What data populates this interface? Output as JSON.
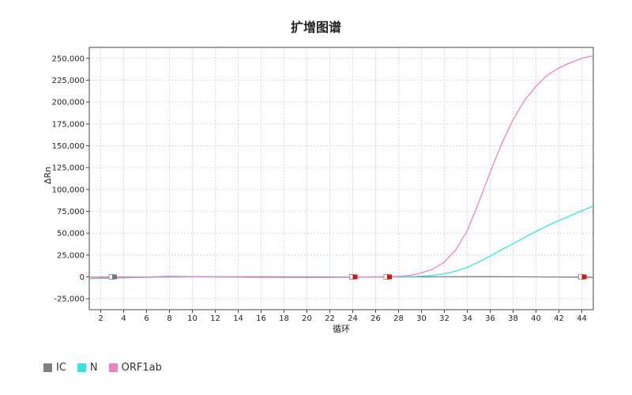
{
  "chart_data": {
    "type": "line",
    "title": "扩增图谱",
    "xlabel": "循环",
    "ylabel": "ΔRn",
    "xlim": [
      1,
      45
    ],
    "ylim": [
      -37500,
      262500
    ],
    "x_ticks": [
      2,
      4,
      6,
      8,
      10,
      12,
      14,
      16,
      18,
      20,
      22,
      24,
      26,
      28,
      30,
      32,
      34,
      36,
      38,
      40,
      42,
      44
    ],
    "y_ticks": [
      -25000,
      0,
      25000,
      50000,
      75000,
      100000,
      125000,
      150000,
      175000,
      200000,
      225000,
      250000
    ],
    "y_tick_labels": [
      "-25,000",
      "0",
      "25,000",
      "50,000",
      "75,000",
      "100,000",
      "125,000",
      "150,000",
      "175,000",
      "200,000",
      "225,000",
      "250,000"
    ],
    "grid": true,
    "legend_position": "bottom-left",
    "series": [
      {
        "name": "IC",
        "color": "#808080",
        "x": [
          1,
          5,
          10,
          15,
          20,
          25,
          30,
          35,
          40,
          45
        ],
        "y": [
          -1500,
          -500,
          0,
          200,
          0,
          -200,
          0,
          300,
          0,
          -500
        ]
      },
      {
        "name": "N",
        "color": "#33e6e6",
        "x": [
          1,
          3,
          5,
          8,
          10,
          15,
          20,
          25,
          28,
          29,
          30,
          31,
          32,
          33,
          34,
          35,
          36,
          37,
          38,
          39,
          40,
          41,
          42,
          43,
          44,
          45
        ],
        "y": [
          -2000,
          -1500,
          -800,
          0,
          300,
          -500,
          -700,
          -300,
          0,
          200,
          800,
          1800,
          3500,
          6500,
          11000,
          17000,
          24000,
          31000,
          38000,
          45000,
          52000,
          58500,
          64500,
          70000,
          75500,
          81000
        ]
      },
      {
        "name": "ORF1ab",
        "color": "#f080c0",
        "x": [
          1,
          3,
          5,
          8,
          10,
          15,
          20,
          25,
          28,
          29,
          30,
          31,
          32,
          33,
          34,
          35,
          36,
          37,
          38,
          39,
          40,
          41,
          42,
          43,
          44,
          45
        ],
        "y": [
          -1500,
          -1000,
          -500,
          700,
          300,
          -300,
          -500,
          -200,
          500,
          1500,
          4500,
          9000,
          17000,
          31000,
          53000,
          85000,
          120000,
          152000,
          180000,
          202000,
          218000,
          231000,
          239000,
          245000,
          250000,
          253000
        ]
      }
    ],
    "markers": [
      {
        "x": 3,
        "series": "N",
        "color": "#22cc22"
      },
      {
        "x": 3,
        "series": "IC",
        "color": "#777777"
      },
      {
        "x": 24,
        "series": "N",
        "color": "#dd1111"
      },
      {
        "x": 27,
        "series": "ORF1ab",
        "color": "#dd1111"
      },
      {
        "x": 44,
        "series": "IC",
        "color": "#dd1111"
      }
    ]
  }
}
